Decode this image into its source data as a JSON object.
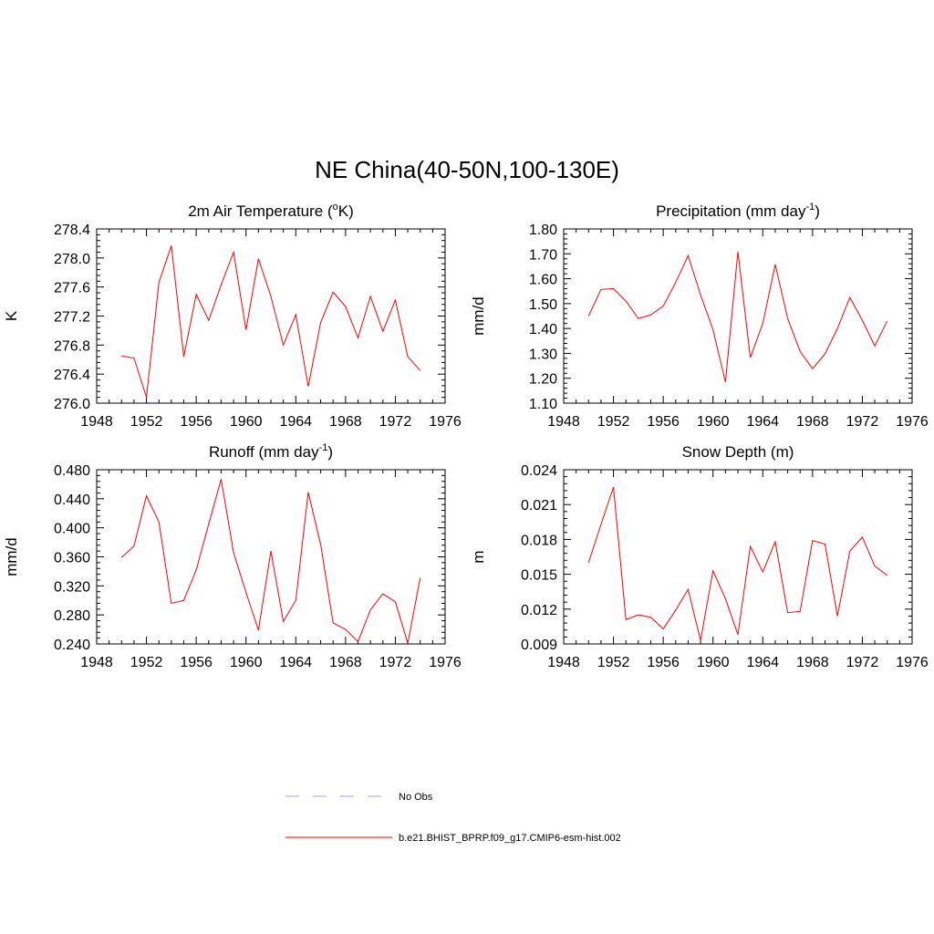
{
  "title": "NE China(40-50N,100-130E)",
  "legend": [
    {
      "label": "No Obs",
      "color": "#9f9fff",
      "dash": "dashed"
    },
    {
      "label": "b.e21.BHIST_BPRP.f09_g17.CMIP6-esm-hist.002",
      "color": "#ff0000",
      "dash": "solid"
    }
  ],
  "chart_data": [
    {
      "type": "line",
      "title_main": "2m Air Temperature (",
      "title_sup": "o",
      "title_end": "K)",
      "ylabel": "K",
      "xlim": [
        1948,
        1976
      ],
      "xticks": [
        "1948",
        "1952",
        "1956",
        "1960",
        "1964",
        "1968",
        "1972",
        "1976"
      ],
      "ylim": [
        276.0,
        278.4
      ],
      "yticks": [
        "276.0",
        "276.4",
        "276.8",
        "277.2",
        "277.6",
        "278.0",
        "278.4"
      ],
      "x": [
        1950,
        1951,
        1952,
        1953,
        1954,
        1955,
        1956,
        1957,
        1958,
        1959,
        1960,
        1961,
        1962,
        1963,
        1964,
        1965,
        1966,
        1967,
        1968,
        1969,
        1970,
        1971,
        1972,
        1973,
        1974
      ],
      "series": [
        {
          "name": "b.e21.BHIST_BPRP.f09_g17.CMIP6-esm-hist.002",
          "values": [
            276.65,
            276.62,
            276.08,
            277.66,
            278.17,
            276.64,
            277.5,
            277.14,
            277.63,
            278.08,
            277.01,
            277.99,
            277.47,
            276.8,
            277.22,
            276.23,
            277.11,
            277.53,
            277.33,
            276.9,
            277.47,
            276.99,
            277.42,
            276.64,
            276.45
          ]
        }
      ]
    },
    {
      "type": "line",
      "title_main": "Precipitation (mm day",
      "title_sup": "-1",
      "title_end": ")",
      "ylabel": "mm/d",
      "xlim": [
        1948,
        1976
      ],
      "xticks": [
        "1948",
        "1952",
        "1956",
        "1960",
        "1964",
        "1968",
        "1972",
        "1976"
      ],
      "ylim": [
        1.1,
        1.8
      ],
      "yticks": [
        "1.10",
        "1.20",
        "1.30",
        "1.40",
        "1.50",
        "1.60",
        "1.70",
        "1.80"
      ],
      "x": [
        1950,
        1951,
        1952,
        1953,
        1954,
        1955,
        1956,
        1957,
        1958,
        1959,
        1960,
        1961,
        1962,
        1963,
        1964,
        1965,
        1966,
        1967,
        1968,
        1969,
        1970,
        1971,
        1972,
        1973,
        1974
      ],
      "series": [
        {
          "name": "b.e21.BHIST_BPRP.f09_g17.CMIP6-esm-hist.002",
          "values": [
            1.45,
            1.557,
            1.56,
            1.51,
            1.44,
            1.455,
            1.49,
            1.585,
            1.693,
            1.535,
            1.395,
            1.185,
            1.708,
            1.283,
            1.42,
            1.657,
            1.44,
            1.308,
            1.238,
            1.298,
            1.4,
            1.525,
            1.432,
            1.33,
            1.43
          ]
        }
      ]
    },
    {
      "type": "line",
      "title_main": "Runoff (mm day",
      "title_sup": "-1",
      "title_end": ")",
      "ylabel": "mm/d",
      "xlim": [
        1948,
        1976
      ],
      "xticks": [
        "1948",
        "1952",
        "1956",
        "1960",
        "1964",
        "1968",
        "1972",
        "1976"
      ],
      "ylim": [
        0.24,
        0.48
      ],
      "yticks": [
        "0.240",
        "0.280",
        "0.320",
        "0.360",
        "0.400",
        "0.440",
        "0.480"
      ],
      "x": [
        1950,
        1951,
        1952,
        1953,
        1954,
        1955,
        1956,
        1957,
        1958,
        1959,
        1960,
        1961,
        1962,
        1963,
        1964,
        1965,
        1966,
        1967,
        1968,
        1969,
        1970,
        1971,
        1972,
        1973,
        1974
      ],
      "series": [
        {
          "name": "b.e21.BHIST_BPRP.f09_g17.CMIP6-esm-hist.002",
          "values": [
            0.359,
            0.375,
            0.444,
            0.408,
            0.296,
            0.3,
            0.342,
            0.405,
            0.467,
            0.366,
            0.311,
            0.259,
            0.368,
            0.271,
            0.3,
            0.449,
            0.377,
            0.269,
            0.26,
            0.243,
            0.287,
            0.309,
            0.298,
            0.241,
            0.331
          ]
        }
      ]
    },
    {
      "type": "line",
      "title_main": "Snow Depth (m)",
      "title_sup": "",
      "title_end": "",
      "ylabel": "m",
      "xlim": [
        1948,
        1976
      ],
      "xticks": [
        "1948",
        "1952",
        "1956",
        "1960",
        "1964",
        "1968",
        "1972",
        "1976"
      ],
      "ylim": [
        0.009,
        0.024
      ],
      "yticks": [
        "0.009",
        "0.012",
        "0.015",
        "0.018",
        "0.021",
        "0.024"
      ],
      "x": [
        1950,
        1951,
        1952,
        1953,
        1954,
        1955,
        1956,
        1957,
        1958,
        1959,
        1960,
        1961,
        1962,
        1963,
        1964,
        1965,
        1966,
        1967,
        1968,
        1969,
        1970,
        1971,
        1972,
        1973,
        1974
      ],
      "series": [
        {
          "name": "b.e21.BHIST_BPRP.f09_g17.CMIP6-esm-hist.002",
          "values": [
            0.016,
            0.0193,
            0.0225,
            0.0111,
            0.0115,
            0.0113,
            0.0103,
            0.0119,
            0.0137,
            0.0093,
            0.0153,
            0.0129,
            0.0098,
            0.0174,
            0.0152,
            0.0178,
            0.0117,
            0.0118,
            0.0179,
            0.0176,
            0.0114,
            0.017,
            0.0182,
            0.0157,
            0.0149
          ]
        }
      ]
    }
  ]
}
